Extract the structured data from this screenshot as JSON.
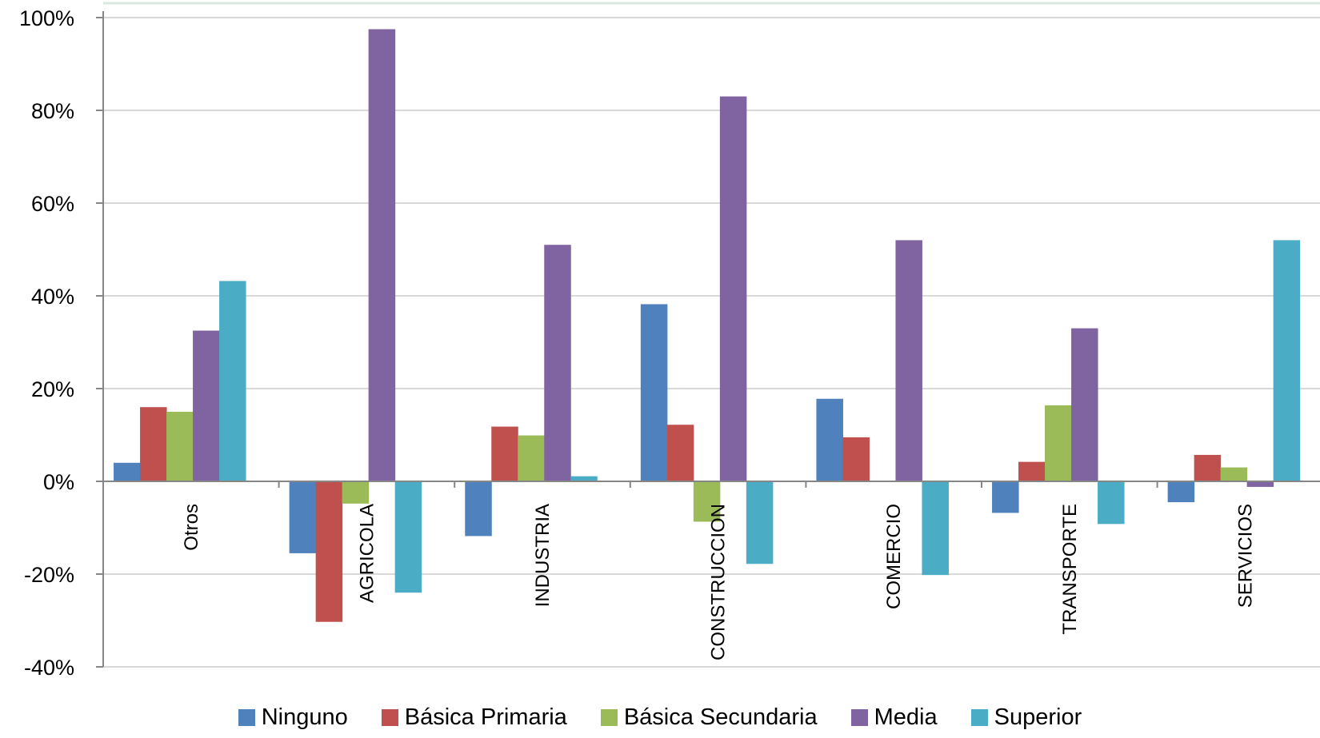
{
  "chart_data": {
    "type": "bar",
    "categories": [
      "Otros",
      "AGRICOLA",
      "INDUSTRIA",
      "CONSTRUCCION",
      "COMERCIO",
      "TRANSPORTE",
      "SERVICIOS"
    ],
    "series": [
      {
        "name": "Ninguno",
        "color": "#4F81BD",
        "values": [
          4,
          -15.5,
          -11.8,
          38.2,
          17.8,
          -6.8,
          -4.5
        ]
      },
      {
        "name": "Básica Primaria",
        "color": "#C0504D",
        "values": [
          16,
          -30.3,
          11.8,
          12.2,
          9.5,
          4.2,
          5.7
        ]
      },
      {
        "name": "Básica Secundaria",
        "color": "#9BBB59",
        "values": [
          15,
          -4.8,
          9.9,
          -8.7,
          0,
          16.4,
          3
        ]
      },
      {
        "name": "Media",
        "color": "#8064A2",
        "values": [
          32.5,
          97.5,
          51,
          83,
          52,
          33,
          -1.2
        ]
      },
      {
        "name": "Superior",
        "color": "#4BACC6",
        "values": [
          43.2,
          -24,
          1.1,
          -17.8,
          -20.2,
          -9.2,
          52
        ]
      }
    ],
    "yticks": [
      "100%",
      "80%",
      "60%",
      "40%",
      "20%",
      "0%",
      "-20%",
      "-40%"
    ],
    "ylim": [
      -40,
      100
    ],
    "grid": true,
    "legend_position": "bottom"
  }
}
